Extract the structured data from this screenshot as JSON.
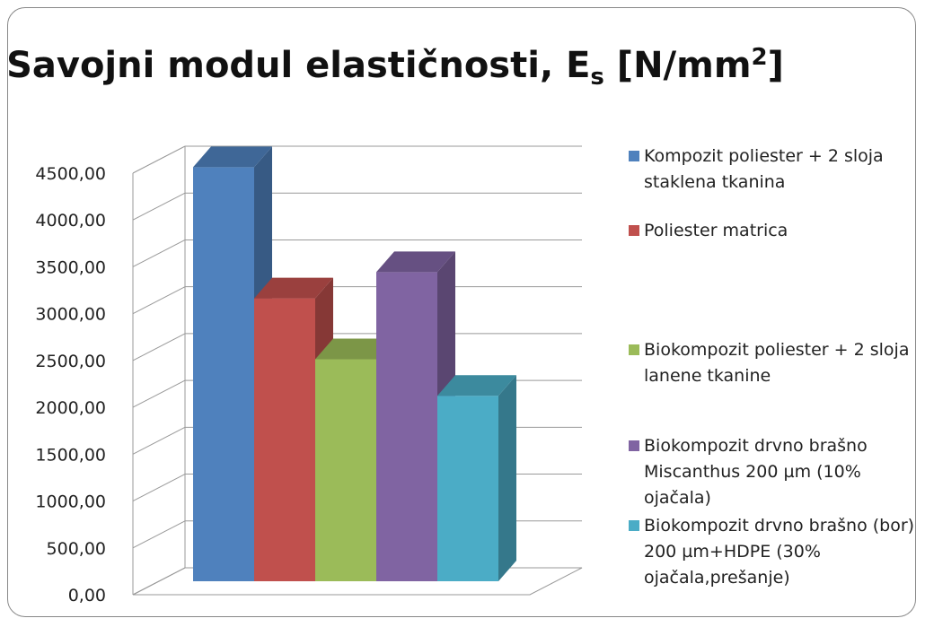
{
  "chart_data": {
    "type": "bar3d",
    "title": [
      "Savojni modul elastičnosti, E",
      "s",
      " [N/mm",
      "2",
      "]"
    ],
    "categories": [
      null
    ],
    "series": [
      {
        "name": "Kompozit poliester + 2 sloja staklena tkanina",
        "color": "#4f81bd",
        "values": [
          4420
        ]
      },
      {
        "name": "Poliester matrica",
        "color": "#c0504d",
        "values": [
          3020
        ]
      },
      {
        "name": "Biokompozit poliester + 2 sloja lanene tkanine",
        "color": "#9bbb59",
        "values": [
          2370
        ]
      },
      {
        "name": "Biokompozit drvno brašno Miscanthus 200 µm (10% ojačala)",
        "color": "#8064a2",
        "values": [
          3300
        ]
      },
      {
        "name": "Biokompozit drvno brašno (bor) 200 µm+HDPE  (30% ojačala,prešanje)",
        "color": "#4bacc6",
        "values": [
          1980
        ]
      }
    ],
    "ylim": [
      0,
      4500
    ],
    "yticks": [
      {
        "value": 0,
        "label": "0,00"
      },
      {
        "value": 500,
        "label": "500,00"
      },
      {
        "value": 1000,
        "label": "1000,00"
      },
      {
        "value": 1500,
        "label": "1500,00"
      },
      {
        "value": 2000,
        "label": "2000,00"
      },
      {
        "value": 2500,
        "label": "2500,00"
      },
      {
        "value": 3000,
        "label": "3000,00"
      },
      {
        "value": 3500,
        "label": "3500,00"
      },
      {
        "value": 4000,
        "label": "4000,00"
      },
      {
        "value": 4500,
        "label": "4500,00"
      }
    ],
    "grid": true,
    "legend": "right"
  }
}
